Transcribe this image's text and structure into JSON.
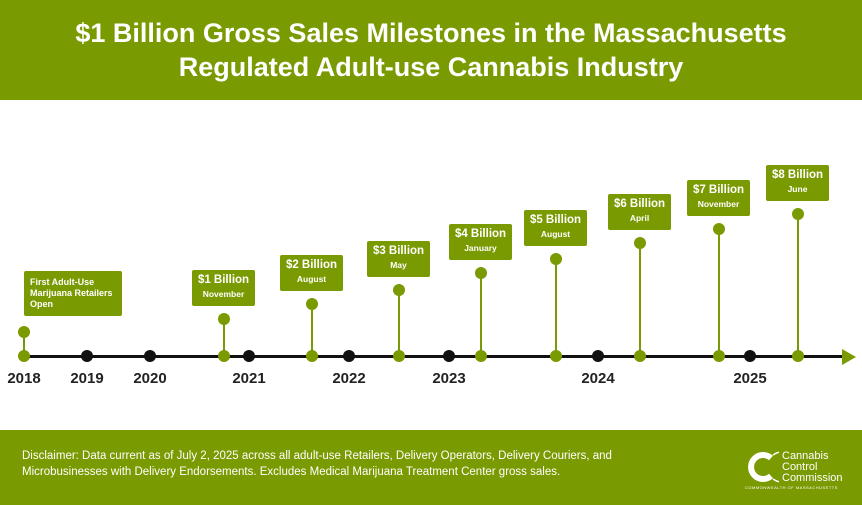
{
  "header": {
    "line1": "$1 Billion Gross Sales Milestones in the Massachusetts",
    "line2": "Regulated Adult-use Cannabis Industry"
  },
  "colors": {
    "accent": "#7a9a01",
    "axis": "#111111"
  },
  "first_event": "First Adult-Use Marijuana Retailers Open",
  "milestones": [
    {
      "amount": "$1 Billion",
      "month": "November",
      "year": "2020"
    },
    {
      "amount": "$2 Billion",
      "month": "August",
      "year": "2021"
    },
    {
      "amount": "$3 Billion",
      "month": "May",
      "year": "2022"
    },
    {
      "amount": "$4 Billion",
      "month": "January",
      "year": "2023"
    },
    {
      "amount": "$5 Billion",
      "month": "August",
      "year": "2023"
    },
    {
      "amount": "$6 Billion",
      "month": "April",
      "year": "2024"
    },
    {
      "amount": "$7 Billion",
      "month": "November",
      "year": "2024"
    },
    {
      "amount": "$8 Billion",
      "month": "June",
      "year": "2025"
    }
  ],
  "years": [
    "2018",
    "2019",
    "2020",
    "2021",
    "2022",
    "2023",
    "2024",
    "2025"
  ],
  "footer": {
    "disclaimer": "Disclaimer: Data current as of July 2, 2025 across all adult-use Retailers, Delivery Operators, Delivery Couriers, and Microbusinesses with Delivery Endorsements. Excludes Medical Marijuana Treatment Center gross sales.",
    "logo_lines": [
      "Cannabis",
      "Control",
      "Commission"
    ],
    "logo_sub": "COMMONWEALTH OF MASSACHUSETTS"
  }
}
